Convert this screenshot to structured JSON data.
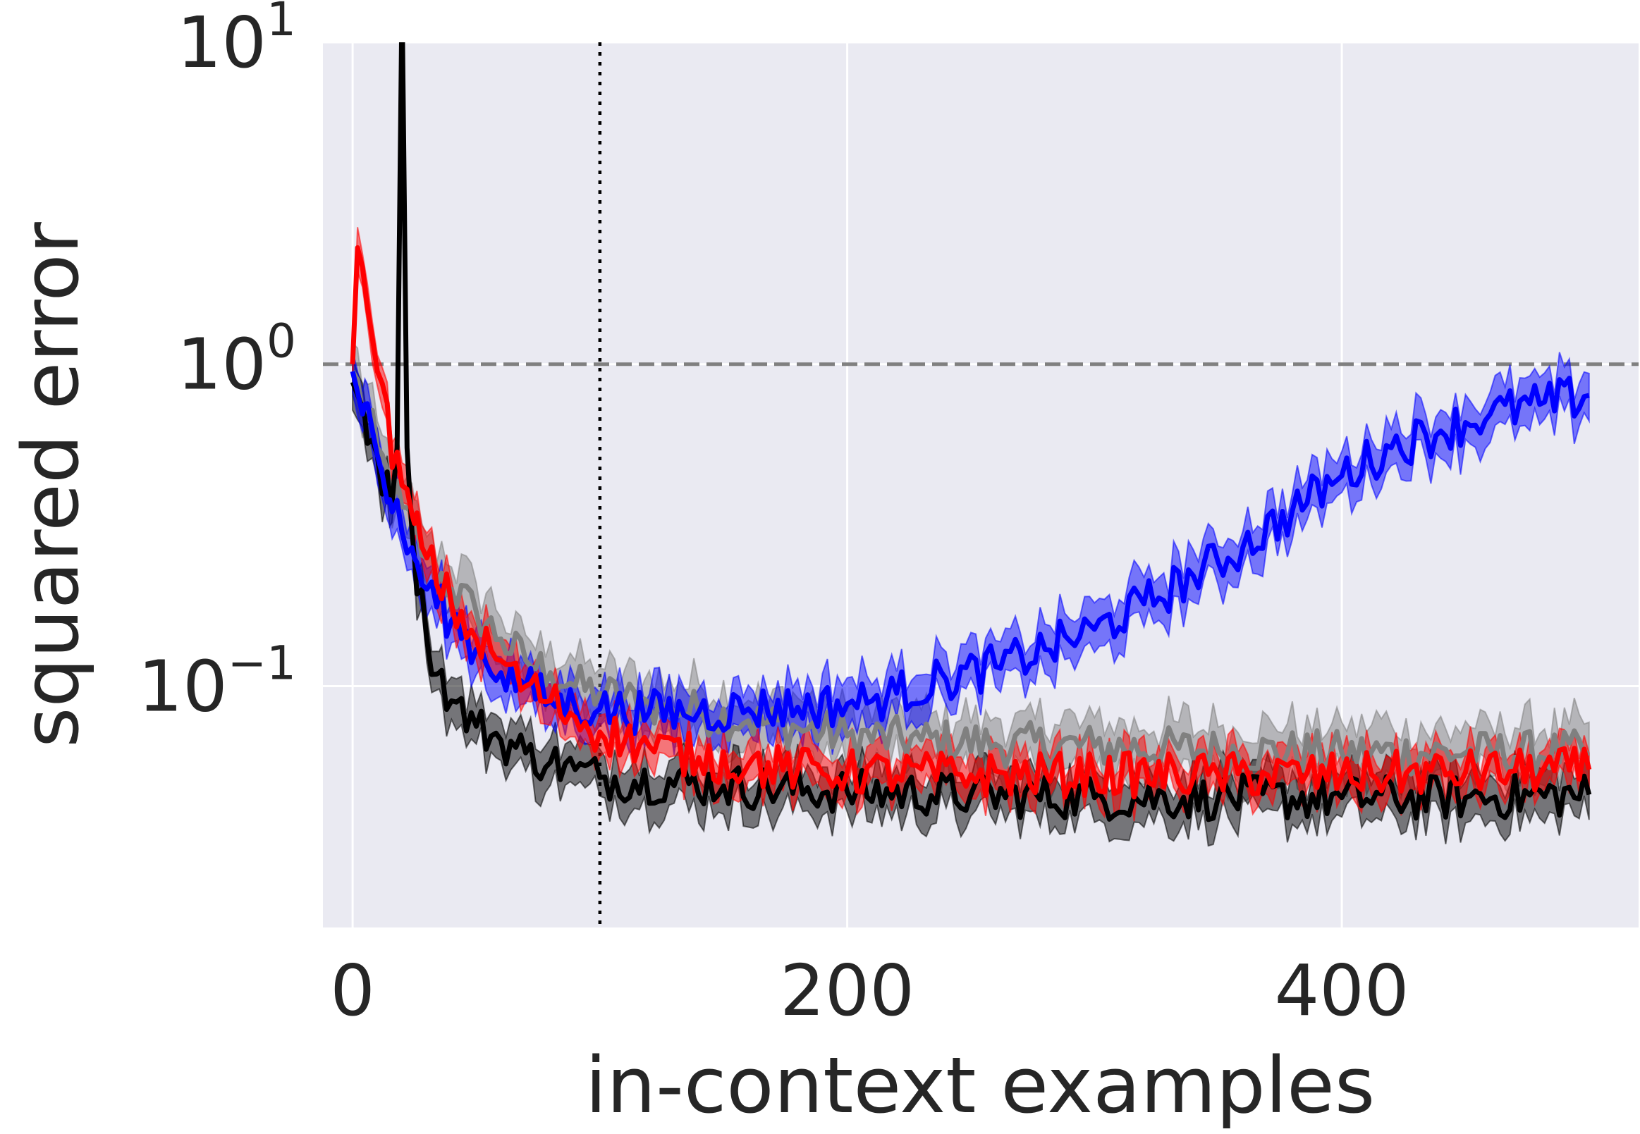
{
  "chart_data": {
    "type": "line",
    "xlabel": "in-context examples",
    "ylabel": "squared error",
    "xlim": [
      -12,
      520
    ],
    "ylim_log10": [
      -1.75,
      1.0
    ],
    "yscale": "log",
    "x_ticks": [
      0,
      200,
      400
    ],
    "x_tick_labels": [
      "0",
      "200",
      "400"
    ],
    "y_ticks": [
      {
        "exp": 1,
        "base": "10",
        "sup": "1"
      },
      {
        "exp": 0,
        "base": "10",
        "sup": "0"
      },
      {
        "exp": -1,
        "base": "10",
        "sup": "−1"
      }
    ],
    "grid": true,
    "background": "#eaeaf2",
    "reference_lines": [
      {
        "orientation": "horizontal",
        "value": 1.0,
        "style": "dashed",
        "color": "#808080"
      },
      {
        "orientation": "vertical",
        "value": 100,
        "style": "dotted",
        "color": "#000000"
      }
    ],
    "series": [
      {
        "color": "#808080",
        "band_halfwidth_log10": 0.08,
        "points": [
          [
            0,
            0.95
          ],
          [
            5,
            0.72
          ],
          [
            10,
            0.55
          ],
          [
            15,
            0.42
          ],
          [
            20,
            0.36
          ],
          [
            25,
            0.3
          ],
          [
            30,
            0.25
          ],
          [
            40,
            0.2
          ],
          [
            50,
            0.17
          ],
          [
            60,
            0.14
          ],
          [
            70,
            0.12
          ],
          [
            80,
            0.11
          ],
          [
            90,
            0.1
          ],
          [
            100,
            0.095
          ],
          [
            120,
            0.088
          ],
          [
            140,
            0.083
          ],
          [
            160,
            0.078
          ],
          [
            180,
            0.074
          ],
          [
            200,
            0.07
          ],
          [
            230,
            0.068
          ],
          [
            260,
            0.066
          ],
          [
            300,
            0.065
          ],
          [
            350,
            0.063
          ],
          [
            400,
            0.062
          ],
          [
            450,
            0.062
          ],
          [
            500,
            0.062
          ]
        ]
      },
      {
        "color": "#000000",
        "band_halfwidth_log10": 0.07,
        "points": [
          [
            0,
            0.88
          ],
          [
            5,
            0.68
          ],
          [
            10,
            0.52
          ],
          [
            15,
            0.38
          ],
          [
            18,
            0.55
          ],
          [
            20,
            14.0
          ],
          [
            22,
            0.55
          ],
          [
            25,
            0.25
          ],
          [
            30,
            0.14
          ],
          [
            35,
            0.11
          ],
          [
            40,
            0.09
          ],
          [
            50,
            0.075
          ],
          [
            60,
            0.068
          ],
          [
            70,
            0.062
          ],
          [
            80,
            0.058
          ],
          [
            90,
            0.055
          ],
          [
            100,
            0.052
          ],
          [
            150,
            0.049
          ],
          [
            200,
            0.047
          ],
          [
            250,
            0.046
          ],
          [
            300,
            0.045
          ],
          [
            350,
            0.045
          ],
          [
            400,
            0.045
          ],
          [
            450,
            0.045
          ],
          [
            500,
            0.046
          ]
        ]
      },
      {
        "color": "#0000ff",
        "band_halfwidth_log10": 0.07,
        "points": [
          [
            0,
            0.95
          ],
          [
            5,
            0.75
          ],
          [
            10,
            0.52
          ],
          [
            15,
            0.38
          ],
          [
            20,
            0.3
          ],
          [
            25,
            0.25
          ],
          [
            30,
            0.2
          ],
          [
            40,
            0.16
          ],
          [
            50,
            0.13
          ],
          [
            60,
            0.11
          ],
          [
            70,
            0.1
          ],
          [
            80,
            0.09
          ],
          [
            100,
            0.085
          ],
          [
            120,
            0.083
          ],
          [
            140,
            0.083
          ],
          [
            160,
            0.085
          ],
          [
            180,
            0.086
          ],
          [
            200,
            0.088
          ],
          [
            210,
            0.09
          ],
          [
            220,
            0.095
          ],
          [
            240,
            0.105
          ],
          [
            260,
            0.115
          ],
          [
            280,
            0.13
          ],
          [
            300,
            0.15
          ],
          [
            320,
            0.18
          ],
          [
            340,
            0.22
          ],
          [
            360,
            0.27
          ],
          [
            380,
            0.35
          ],
          [
            400,
            0.45
          ],
          [
            420,
            0.55
          ],
          [
            440,
            0.62
          ],
          [
            460,
            0.7
          ],
          [
            480,
            0.75
          ],
          [
            500,
            0.8
          ]
        ]
      },
      {
        "color": "#ff0000",
        "band_halfwidth_log10": 0.06,
        "points": [
          [
            0,
            1.0
          ],
          [
            2,
            2.3
          ],
          [
            4,
            2.0
          ],
          [
            6,
            1.5
          ],
          [
            8,
            1.2
          ],
          [
            10,
            0.95
          ],
          [
            15,
            0.6
          ],
          [
            20,
            0.42
          ],
          [
            25,
            0.32
          ],
          [
            30,
            0.25
          ],
          [
            40,
            0.18
          ],
          [
            50,
            0.14
          ],
          [
            60,
            0.12
          ],
          [
            70,
            0.1
          ],
          [
            80,
            0.09
          ],
          [
            90,
            0.08
          ],
          [
            100,
            0.072
          ],
          [
            120,
            0.065
          ],
          [
            140,
            0.06
          ],
          [
            160,
            0.057
          ],
          [
            180,
            0.055
          ],
          [
            200,
            0.054
          ],
          [
            250,
            0.053
          ],
          [
            300,
            0.053
          ],
          [
            350,
            0.053
          ],
          [
            400,
            0.053
          ],
          [
            450,
            0.054
          ],
          [
            500,
            0.055
          ]
        ]
      }
    ]
  }
}
